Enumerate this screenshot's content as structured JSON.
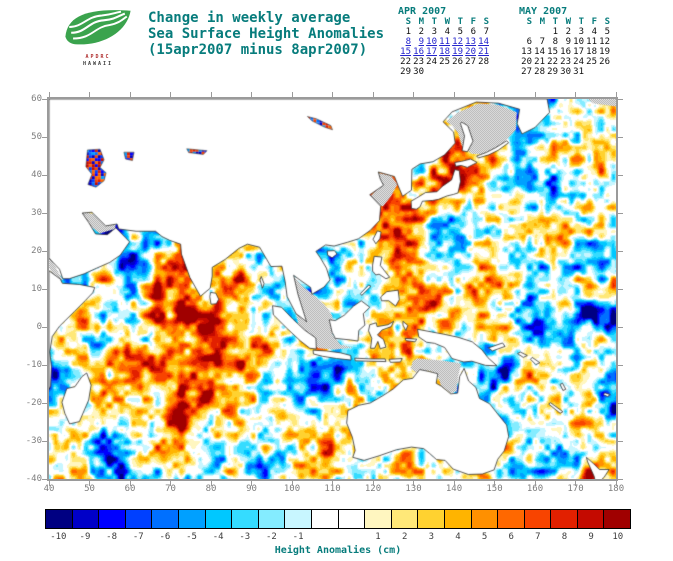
{
  "logo": {
    "caption_line1": "APDRC",
    "caption_line2": "HAWAII",
    "leaf_color": "#3aa34d"
  },
  "title": {
    "line1": "Change in weekly average",
    "line2": "Sea Surface Height Anomalies",
    "line3": "(15apr2007 minus 8apr2007)"
  },
  "calendars": [
    {
      "title": "APR 2007",
      "dow": [
        "S",
        "M",
        "T",
        "W",
        "T",
        "F",
        "S"
      ],
      "weeks": [
        [
          "1",
          "2",
          "3",
          "4",
          "5",
          "6",
          "7"
        ],
        [
          "8",
          "9",
          "10",
          "11",
          "12",
          "13",
          "14"
        ],
        [
          "15",
          "16",
          "17",
          "18",
          "19",
          "20",
          "21"
        ],
        [
          "22",
          "23",
          "24",
          "25",
          "26",
          "27",
          "28"
        ],
        [
          "29",
          "30",
          "",
          "",
          "",
          "",
          ""
        ]
      ],
      "highlight_rows": [
        1,
        2
      ]
    },
    {
      "title": "MAY 2007",
      "dow": [
        "S",
        "M",
        "T",
        "W",
        "T",
        "F",
        "S"
      ],
      "weeks": [
        [
          "",
          "",
          "1",
          "2",
          "3",
          "4",
          "5"
        ],
        [
          "6",
          "7",
          "8",
          "9",
          "10",
          "11",
          "12"
        ],
        [
          "13",
          "14",
          "15",
          "16",
          "17",
          "18",
          "19"
        ],
        [
          "20",
          "21",
          "22",
          "23",
          "24",
          "25",
          "26"
        ],
        [
          "27",
          "28",
          "29",
          "30",
          "31",
          "",
          ""
        ]
      ],
      "highlight_rows": []
    }
  ],
  "map": {
    "x_tick_labels": [
      "40",
      "50",
      "60",
      "70",
      "80",
      "90",
      "100",
      "110",
      "120",
      "130",
      "140",
      "150",
      "160",
      "170",
      "180"
    ],
    "y_tick_labels": [
      "60",
      "50",
      "40",
      "30",
      "20",
      "10",
      "0",
      "-10",
      "-20",
      "-30",
      "-40"
    ],
    "lon_range": [
      40,
      180
    ],
    "lat_range": [
      -40,
      60
    ]
  },
  "colorbar": {
    "caption": "Height Anomalies (cm)",
    "cells": [
      {
        "color": "#000082",
        "label": "-10"
      },
      {
        "color": "#0000c8",
        "label": "-9"
      },
      {
        "color": "#0000ff",
        "label": "-8"
      },
      {
        "color": "#0040ff",
        "label": "-7"
      },
      {
        "color": "#0070ff",
        "label": "-6"
      },
      {
        "color": "#00a0ff",
        "label": "-5"
      },
      {
        "color": "#00c8ff",
        "label": "-4"
      },
      {
        "color": "#35dcff",
        "label": "-3"
      },
      {
        "color": "#84ecff",
        "label": "-2"
      },
      {
        "color": "#c8f6ff",
        "label": "-1"
      },
      {
        "color": "#ffffff",
        "label": ""
      },
      {
        "color": "#ffffff",
        "label": ""
      },
      {
        "color": "#fff6c0",
        "label": "1"
      },
      {
        "color": "#ffe878",
        "label": "2"
      },
      {
        "color": "#ffd230",
        "label": "3"
      },
      {
        "color": "#ffb400",
        "label": "4"
      },
      {
        "color": "#ff9000",
        "label": "5"
      },
      {
        "color": "#ff6800",
        "label": "6"
      },
      {
        "color": "#f84400",
        "label": "7"
      },
      {
        "color": "#e22000",
        "label": "8"
      },
      {
        "color": "#c40a00",
        "label": "9"
      },
      {
        "color": "#a00000",
        "label": "10"
      }
    ]
  },
  "theme": {
    "teal": "#077c7c",
    "link_blue": "#2323cd",
    "date_color": "#101010",
    "axis_label": "#7d7d7d",
    "frame": "#9a9a9a",
    "land": "#ffffff",
    "coast": "#303030",
    "stipple": "#999999"
  }
}
